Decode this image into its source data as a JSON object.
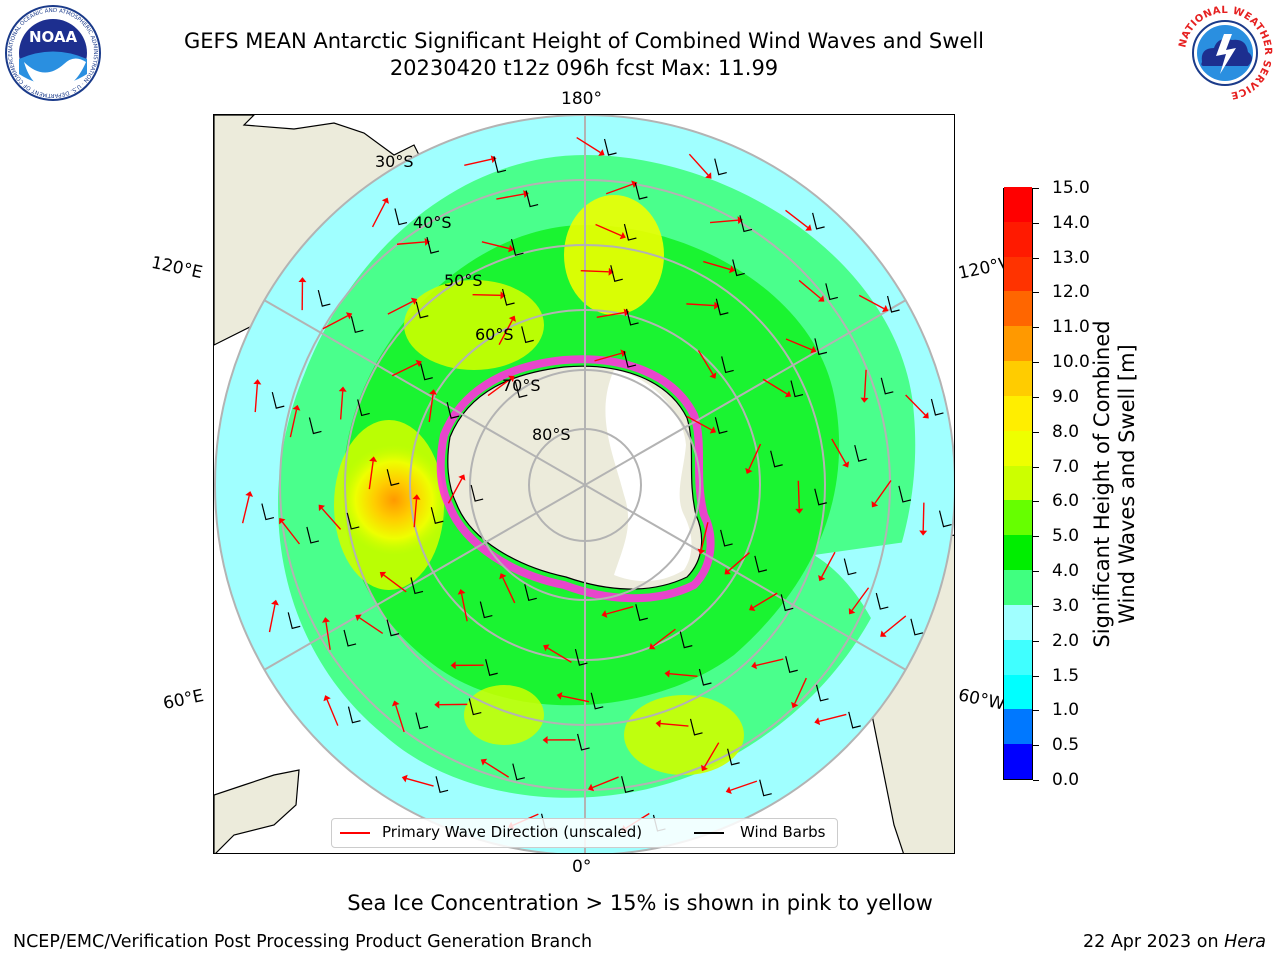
{
  "header": {
    "title_line1": "GEFS MEAN Antarctic Significant Height of Combined Wind Waves and Swell",
    "title_line2": "20230420 t12z 096h fcst   Max: 11.99"
  },
  "logos": {
    "left": {
      "text": "NOAA",
      "ring_text": "NATIONAL OCEANIC AND ATMOSPHERIC ADMINISTRATION · U.S. DEPARTMENT OF COMMERCE"
    },
    "right": {
      "ring_text": "NATIONAL WEATHER SERVICE"
    }
  },
  "map": {
    "projection": "south-polar-stereographic",
    "longitude_labels": {
      "top": "180°",
      "left_upper": "120°E",
      "right_upper": "120°W",
      "left_lower": "60°E",
      "right_lower": "60°W",
      "bottom": "0°"
    },
    "latitude_labels": [
      "30°S",
      "40°S",
      "50°S",
      "60°S",
      "70°S",
      "80°S"
    ],
    "colors": {
      "land": "#ecebdb",
      "ice_edge": "#ff33dd",
      "wave_arrow": "#ff0000",
      "wind_barb": "#000000",
      "grid": "#b3b3b3"
    }
  },
  "legend": {
    "items": [
      {
        "label": "Primary Wave Direction (unscaled)",
        "color": "#ff0000"
      },
      {
        "label": "Wind Barbs",
        "color": "#000000"
      }
    ]
  },
  "colorbar": {
    "title_line1": "Significant Height of Combined",
    "title_line2": "Wind Waves and Swell [m]",
    "ticks": [
      "0.0",
      "0.5",
      "1.0",
      "1.5",
      "2.0",
      "3.0",
      "4.0",
      "5.0",
      "6.0",
      "7.0",
      "8.0",
      "9.0",
      "10.0",
      "11.0",
      "12.0",
      "13.0",
      "14.0",
      "15.0"
    ],
    "colors": [
      "#0000ff",
      "#0078ff",
      "#00ffff",
      "#40ffff",
      "#a0ffff",
      "#40ff80",
      "#00ee00",
      "#66ff00",
      "#ccff00",
      "#eeff00",
      "#ffee00",
      "#ffcc00",
      "#ff9900",
      "#ff6600",
      "#ff3300",
      "#ff1a00",
      "#ff0000"
    ]
  },
  "note": "Sea Ice Concentration > 15% is shown in pink to yellow",
  "footer": {
    "left": "NCEP/EMC/Verification Post Processing Product Generation Branch",
    "date": "22 Apr 2023 on",
    "machine": "Hera"
  }
}
